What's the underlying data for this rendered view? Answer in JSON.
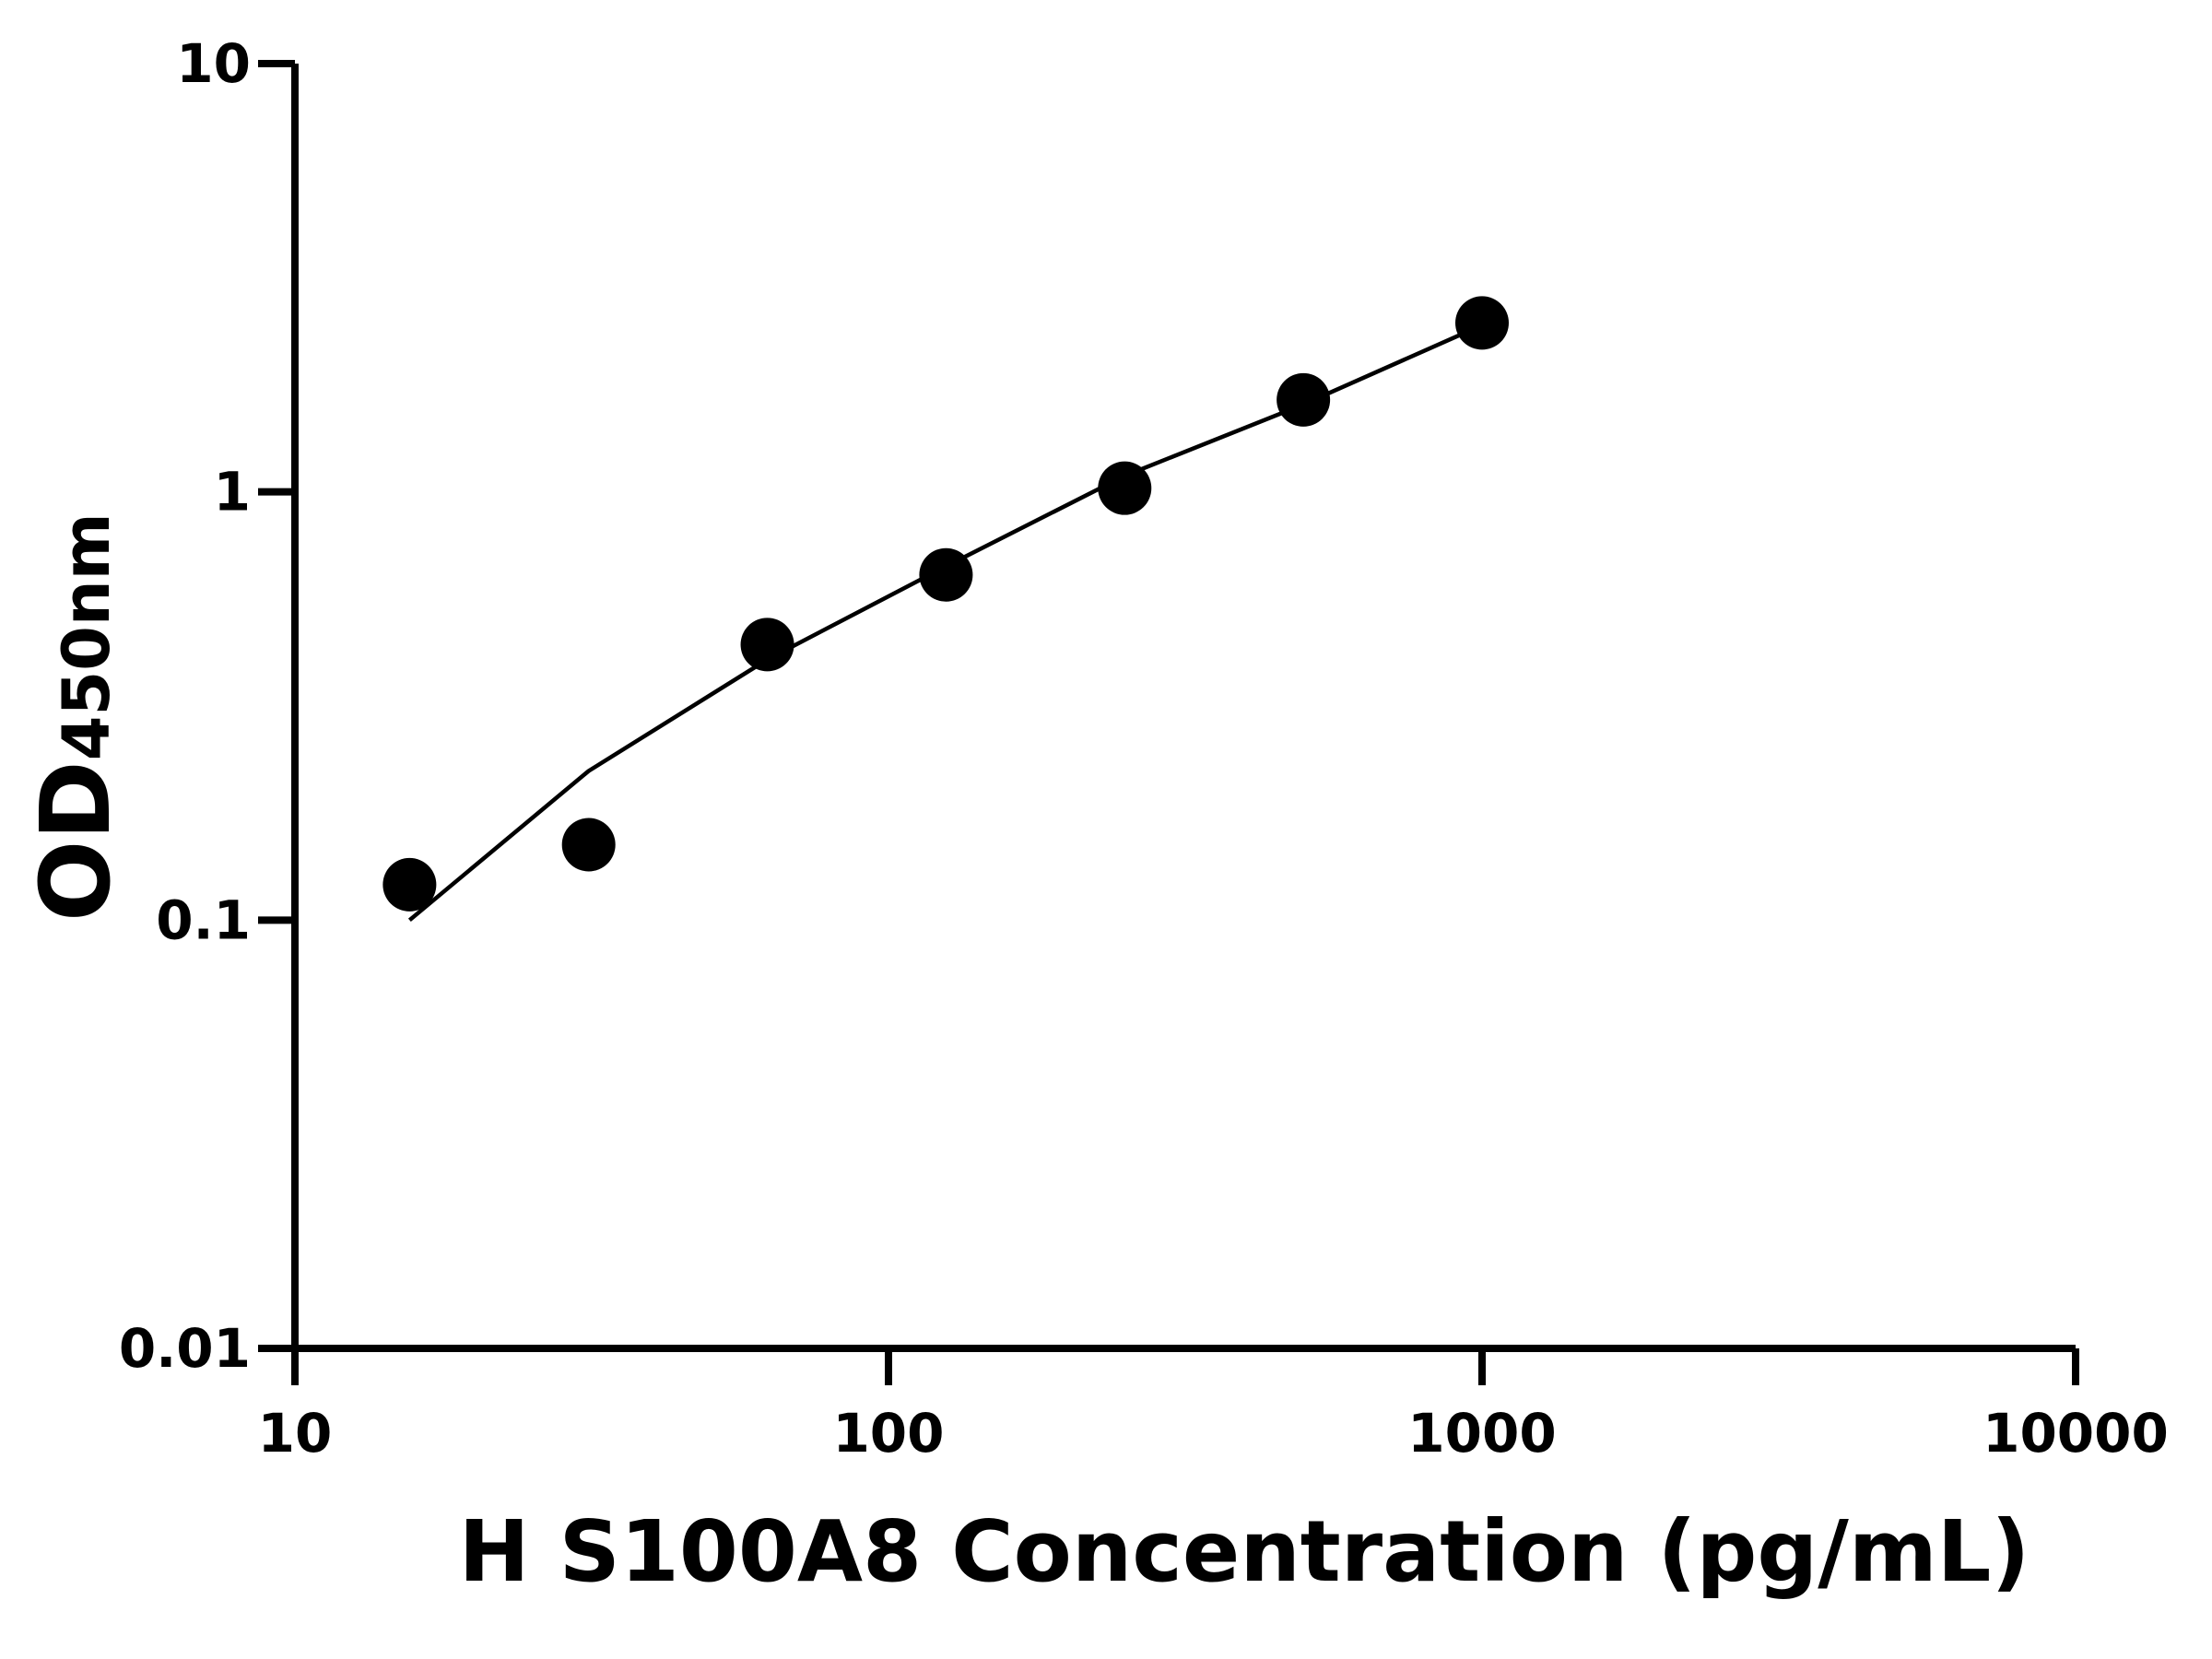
{
  "chart_data": {
    "type": "scatter",
    "xlabel": "H S100A8 Concentration (pg/mL)",
    "ylabel": "OD",
    "ylabel_sub": "450nm",
    "x": [
      15.6,
      31.25,
      62.5,
      125,
      250,
      500,
      1000
    ],
    "series": [
      {
        "color": "#000000",
        "values": [
          0.121,
          0.15,
          0.44,
          0.64,
          1.02,
          1.64,
          2.48
        ]
      }
    ],
    "fit": {
      "color": "#000000",
      "x": [
        15.6,
        31.25,
        62.5,
        125,
        250,
        500,
        1000
      ],
      "values": [
        0.1,
        0.223,
        0.406,
        0.67,
        1.09,
        1.6,
        2.45
      ]
    },
    "xlim": [
      10,
      10000
    ],
    "ylim": [
      0.01,
      10
    ],
    "xticks": [
      10,
      100,
      1000,
      10000
    ],
    "yticks": [
      0.01,
      0.1,
      1,
      10
    ],
    "xlog": true,
    "ylog": true,
    "grid": false
  }
}
